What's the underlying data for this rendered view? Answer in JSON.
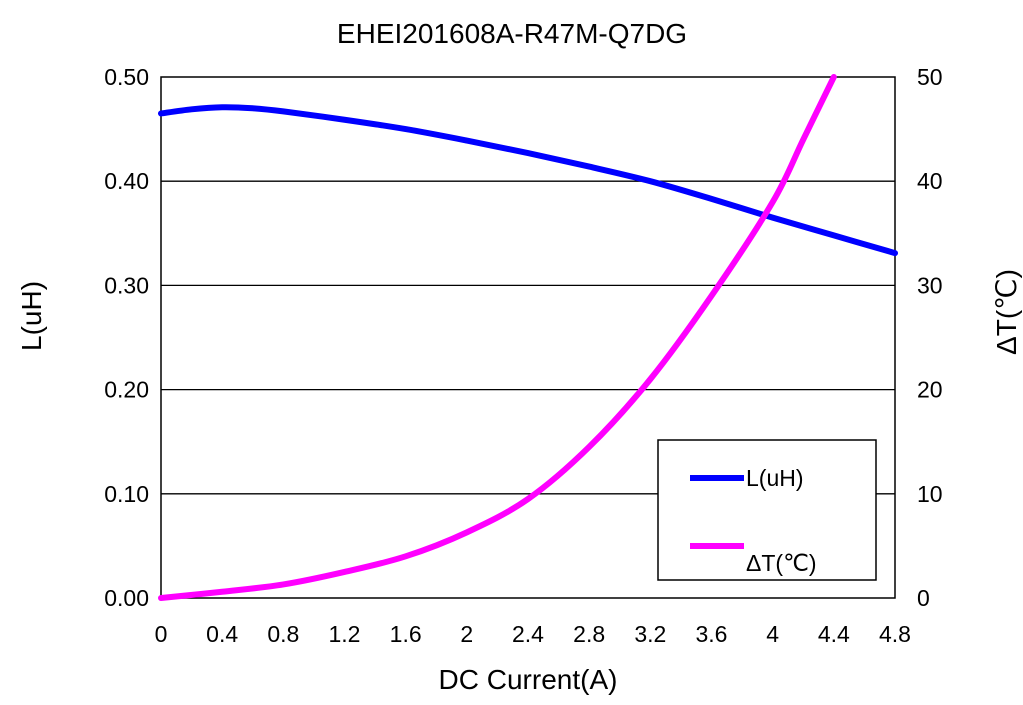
{
  "chart_data": {
    "type": "line",
    "title": "EHEI201608A-R47M-Q7DG",
    "xlabel": "DC Current(A)",
    "ylabel": "L(uH)",
    "y2label": "ΔT(℃)",
    "xlim": [
      0,
      4.8
    ],
    "ylim": [
      0,
      0.5
    ],
    "y2lim": [
      0,
      50
    ],
    "x_ticks": [
      "0",
      "0.4",
      "0.8",
      "1.2",
      "1.6",
      "2",
      "2.4",
      "2.8",
      "3.2",
      "3.6",
      "4",
      "4.4",
      "4.8"
    ],
    "x_tick_values": [
      0,
      0.4,
      0.8,
      1.2,
      1.6,
      2,
      2.4,
      2.8,
      3.2,
      3.6,
      4,
      4.4,
      4.8
    ],
    "y_ticks": [
      "0.00",
      "0.10",
      "0.20",
      "0.30",
      "0.40",
      "0.50"
    ],
    "y_tick_values": [
      0,
      0.1,
      0.2,
      0.3,
      0.4,
      0.5
    ],
    "y2_ticks": [
      "0",
      "10",
      "20",
      "30",
      "40",
      "50"
    ],
    "y2_tick_values": [
      0,
      10,
      20,
      30,
      40,
      50
    ],
    "grid": "horizontal",
    "legend_position": "bottom-right",
    "series": [
      {
        "name": "L(uH)",
        "axis": "left",
        "color": "#0000ff",
        "x": [
          0,
          0.2,
          0.4,
          0.6,
          0.8,
          1.2,
          1.6,
          2.0,
          2.4,
          2.8,
          3.2,
          3.6,
          4.0,
          4.4,
          4.8
        ],
        "y": [
          0.465,
          0.469,
          0.471,
          0.47,
          0.467,
          0.459,
          0.45,
          0.439,
          0.427,
          0.414,
          0.4,
          0.383,
          0.365,
          0.348,
          0.331
        ]
      },
      {
        "name": "ΔT(℃)",
        "axis": "right",
        "color": "#ff00ff",
        "x": [
          0,
          0.4,
          0.8,
          1.2,
          1.6,
          2.0,
          2.4,
          2.8,
          3.2,
          3.6,
          4.0,
          4.2,
          4.4
        ],
        "y": [
          0,
          0.6,
          1.3,
          2.5,
          4.0,
          6.3,
          9.5,
          14.5,
          21.0,
          29.0,
          38.0,
          44.0,
          50.0
        ]
      }
    ]
  }
}
